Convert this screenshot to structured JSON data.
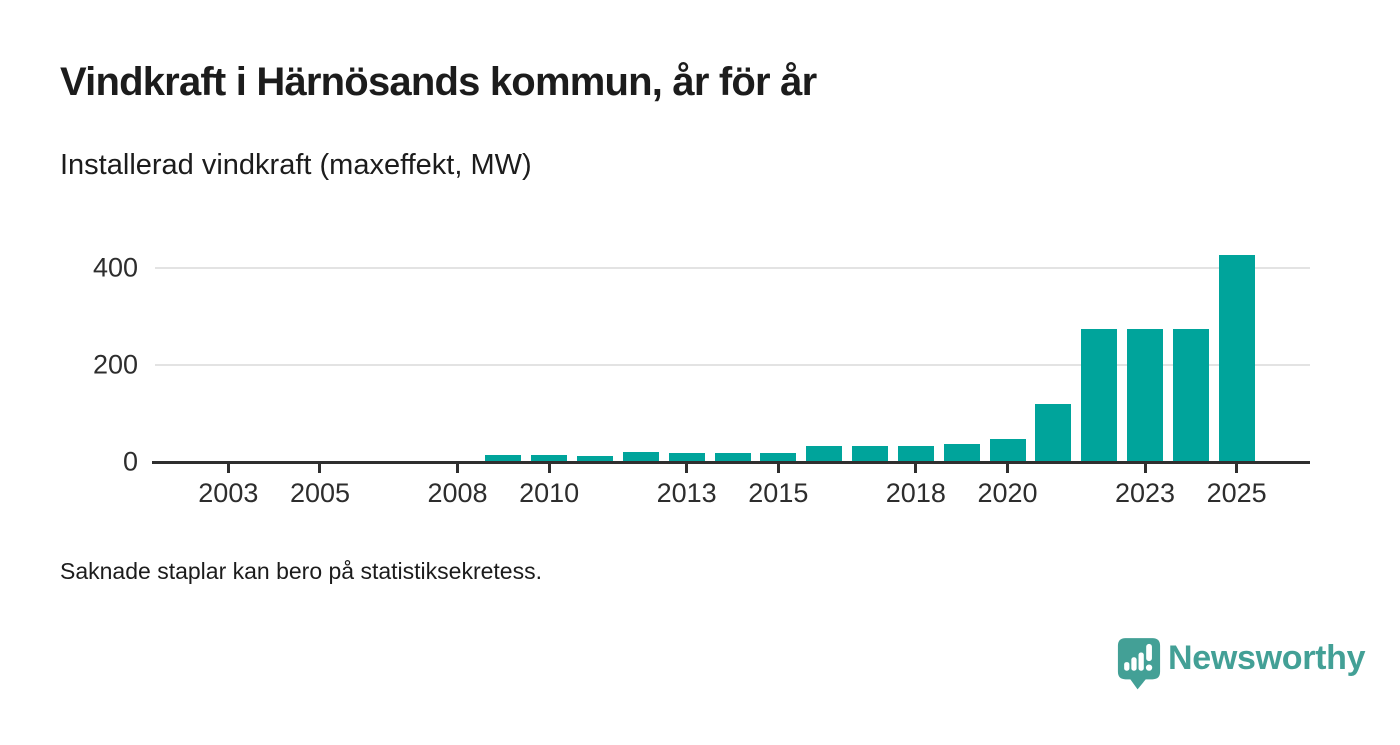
{
  "header": {
    "title": "Vindkraft i Härnösands kommun, år för år",
    "subtitle": "Installerad vindkraft (maxeffekt, MW)"
  },
  "footnote": "Saknade staplar kan bero på statistiksekretess.",
  "branding": {
    "wordmark": "Newsworthy",
    "icon": "speech-bubble-bar-chart",
    "color": "#43a096"
  },
  "colors": {
    "bar": "#00a49b",
    "axis": "#2f2f2f",
    "grid": "#e3e3e3",
    "text": "#1c1c1c"
  },
  "chart_data": {
    "type": "bar",
    "title": "Vindkraft i Härnösands kommun, år för år",
    "subtitle": "Installerad vindkraft (maxeffekt, MW)",
    "unit": "MW",
    "categories": [
      2002,
      2003,
      2004,
      2005,
      2006,
      2007,
      2008,
      2009,
      2010,
      2011,
      2012,
      2013,
      2014,
      2015,
      2016,
      2017,
      2018,
      2019,
      2020,
      2021,
      2022,
      2023,
      2024,
      2025
    ],
    "values": [
      null,
      null,
      null,
      null,
      null,
      null,
      null,
      14,
      14,
      13,
      20,
      19,
      19,
      19,
      34,
      34,
      34,
      38,
      47,
      119,
      274,
      274,
      274,
      427
    ],
    "x_tick_years": [
      2003,
      2005,
      2008,
      2010,
      2013,
      2015,
      2018,
      2020,
      2023,
      2025
    ],
    "y_ticks": [
      0,
      200,
      400
    ],
    "ylim": [
      0,
      450
    ],
    "xlim": [
      2001.4,
      2026.6
    ],
    "grid": "horizontal",
    "legend": "none",
    "bar_color": "#00a49b",
    "missing_value_years": [
      2002,
      2003,
      2004,
      2005,
      2006,
      2007,
      2008
    ]
  }
}
